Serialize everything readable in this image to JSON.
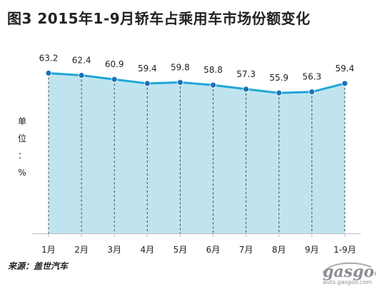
{
  "title": "图3  2015年1-9月轿车占乘用车市场份额变化",
  "ylabel_chars": [
    "单",
    "位",
    "：",
    "%"
  ],
  "source": "来源：盖世汽车",
  "logo": {
    "text": "gasgoo",
    "url": "auto.gasgoo.com"
  },
  "colors": {
    "line": "#1fa6d8",
    "fill": "#bfe4f0",
    "axis": "#bbbbbb",
    "text": "#222222"
  },
  "chart_data": {
    "type": "area",
    "categories": [
      "1月",
      "2月",
      "3月",
      "4月",
      "5月",
      "6月",
      "7月",
      "8月",
      "9月",
      "1-9月"
    ],
    "values": [
      63.2,
      62.4,
      60.9,
      59.4,
      59.8,
      58.8,
      57.3,
      55.9,
      56.3,
      59.4
    ],
    "labels": [
      "63.2",
      "62.4",
      "60.9",
      "59.4",
      "59.8",
      "58.8",
      "57.3",
      "55.9",
      "56.3",
      "59.4"
    ],
    "title": "2015年1-9月轿车占乘用车市场份额变化",
    "ylabel": "单位：%",
    "grid": false,
    "drop_lines": true
  }
}
